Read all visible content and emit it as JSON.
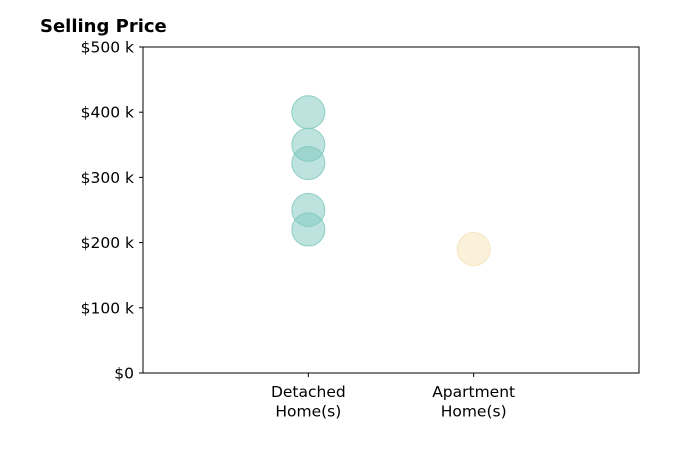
{
  "chart_data": {
    "type": "scatter",
    "title": "Selling Price",
    "xlabel": "",
    "ylabel": "",
    "categories": [
      [
        "Detached",
        "Home(s)"
      ],
      [
        "Apartment",
        "Home(s)"
      ]
    ],
    "xlim": [
      0,
      3
    ],
    "ylim": [
      0,
      500000
    ],
    "yticks": [
      0,
      100000,
      200000,
      300000,
      400000,
      500000
    ],
    "ytick_labels": [
      "$0",
      "$100 k",
      "$200 k",
      "$300 k",
      "$400 k",
      "$500 k"
    ],
    "grid": false,
    "series": [
      {
        "category_index": 0,
        "color": "#7ec8bd",
        "values": [
          400000,
          350000,
          322000,
          250000,
          220000
        ]
      },
      {
        "category_index": 1,
        "color": "#f6e3b5",
        "values": [
          190000
        ]
      }
    ]
  }
}
